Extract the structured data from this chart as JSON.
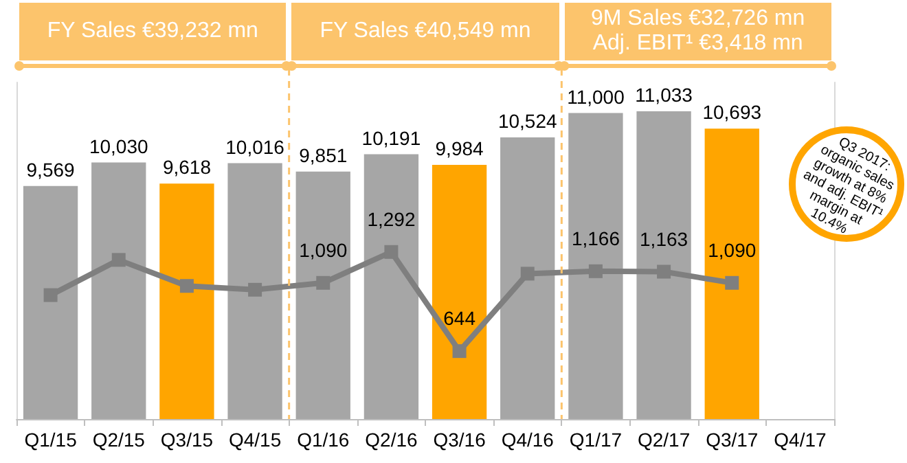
{
  "chart_data": {
    "type": "bar",
    "categories": [
      "Q1/15",
      "Q2/15",
      "Q3/15",
      "Q4/15",
      "Q1/16",
      "Q2/16",
      "Q3/16",
      "Q4/16",
      "Q1/17",
      "Q2/17",
      "Q3/17",
      "Q4/17"
    ],
    "series": [
      {
        "type": "bar",
        "colors": [
          "#a6a6a6",
          "#a6a6a6",
          "#ffa500",
          "#a6a6a6",
          "#a6a6a6",
          "#a6a6a6",
          "#ffa500",
          "#a6a6a6",
          "#a6a6a6",
          "#a6a6a6",
          "#ffa500",
          null
        ],
        "values": [
          9569,
          10030,
          9618,
          10016,
          9851,
          10191,
          9984,
          10524,
          11000,
          11033,
          10693,
          null
        ],
        "value_labels": [
          "9,569",
          "10,030",
          "9,618",
          "10,016",
          "9,851",
          "10,191",
          "9,984",
          "10,524",
          "11,000",
          "11,033",
          "10,693",
          null
        ]
      },
      {
        "type": "line",
        "axis": "y2",
        "color": "#7f7f7f",
        "marker": "square",
        "line_style": "solid",
        "values": [
          1010,
          1240,
          1070,
          1045,
          1090,
          1292,
          644,
          1150,
          1166,
          1163,
          1090,
          null
        ],
        "value_labels": [
          null,
          null,
          null,
          null,
          "1,090",
          "1,292",
          "644",
          null,
          "1,166",
          "1,163",
          "1,090",
          null
        ]
      }
    ],
    "ylim": [
      5000,
      11600
    ],
    "y2lim": [
      200,
      2400
    ],
    "tick_labels": "x",
    "annotations": [
      "FY Sales €39,232 mn",
      "FY Sales €40,549 mn",
      "9M Sales €32,726 mn\nAdj. EBIT¹ €3,418 mn",
      "Q3 2017: organic sales growth at 8% and adj. EBIT¹ margin at 10.4%"
    ]
  }
}
